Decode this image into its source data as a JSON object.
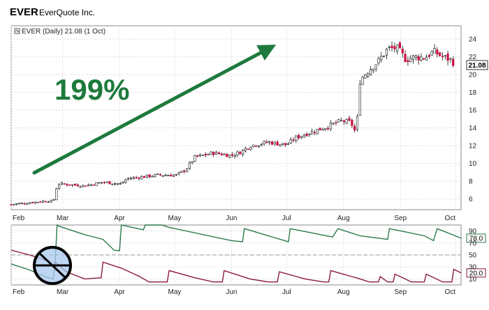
{
  "header": {
    "ticker": "EVER",
    "company": "EverQuote Inc."
  },
  "legend": {
    "text": "EVER (Daily) 21.08 (1 Oct)",
    "last_value": "21.08"
  },
  "annotation": {
    "text": "199%",
    "color": "#1d7a3c"
  },
  "colors": {
    "up_candle": "#ffffff",
    "down_candle": "#cc1040",
    "wick": "#111111",
    "arrow": "#1d7a3c",
    "osc_line_1": "#2a7a4a",
    "osc_line_2": "#8a1a3c",
    "grid": "#dddddd",
    "watermark": "#aac8ee"
  },
  "icons": {
    "watermark": "crossed-circle-icon",
    "legend": "chart-toggle-icon"
  },
  "chart_data": [
    {
      "type": "candlestick",
      "ylim": [
        4.8,
        25.5
      ],
      "y_ticks": [
        "6",
        "8",
        "10",
        "12",
        "14",
        "16",
        "18",
        "20",
        "22",
        "24"
      ],
      "x_ticks": [
        "Feb",
        "Mar",
        "Apr",
        "May",
        "Jun",
        "Jul",
        "Aug",
        "Sep",
        "Oct"
      ],
      "x_tick_values": [
        0,
        28,
        59,
        89,
        120,
        150,
        181,
        212,
        242
      ],
      "x_max": 245,
      "last_value": 21.08,
      "close_anchors": [
        [
          0,
          5.4
        ],
        [
          20,
          5.8
        ],
        [
          23,
          5.7
        ],
        [
          24,
          7.0
        ],
        [
          26,
          7.7
        ],
        [
          40,
          7.5
        ],
        [
          50,
          7.9
        ],
        [
          60,
          7.7
        ],
        [
          63,
          8.3
        ],
        [
          80,
          8.7
        ],
        [
          90,
          8.7
        ],
        [
          95,
          9.3
        ],
        [
          100,
          10.7
        ],
        [
          110,
          11.2
        ],
        [
          120,
          10.9
        ],
        [
          125,
          11.3
        ],
        [
          130,
          12.0
        ],
        [
          140,
          12.4
        ],
        [
          150,
          12.1
        ],
        [
          155,
          12.9
        ],
        [
          160,
          13.3
        ],
        [
          170,
          14.0
        ],
        [
          180,
          14.8
        ],
        [
          185,
          14.6
        ],
        [
          188,
          13.3
        ],
        [
          189,
          16.9
        ],
        [
          190,
          19.4
        ],
        [
          195,
          20.6
        ],
        [
          200,
          21.5
        ],
        [
          205,
          22.9
        ],
        [
          210,
          23.0
        ],
        [
          215,
          21.7
        ],
        [
          220,
          22.0
        ],
        [
          225,
          21.9
        ],
        [
          230,
          22.6
        ],
        [
          235,
          22.0
        ],
        [
          240,
          21.6
        ],
        [
          242,
          21.08
        ]
      ]
    },
    {
      "type": "line",
      "ylim": [
        0,
        100
      ],
      "y_ticks": [
        "10",
        "30",
        "50",
        "70",
        "90"
      ],
      "reference_lines": [
        50
      ],
      "x_ticks": [
        "Feb",
        "Mar",
        "Apr",
        "May",
        "Jun",
        "Jul",
        "Aug",
        "Sep",
        "Oct"
      ],
      "x_tick_values": [
        0,
        28,
        59,
        89,
        120,
        150,
        181,
        212,
        242
      ],
      "x_max": 245,
      "series": [
        {
          "points": [
            [
              0,
              35
            ],
            [
              10,
              25
            ],
            [
              20,
              12
            ],
            [
              23,
              10
            ],
            [
              24,
              40
            ],
            [
              25,
              100
            ],
            [
              26,
              98
            ],
            [
              40,
              84
            ],
            [
              50,
              76
            ],
            [
              56,
              58
            ],
            [
              59,
              57
            ],
            [
              60,
              100
            ],
            [
              72,
              92
            ],
            [
              73,
              100
            ],
            [
              82,
              100
            ],
            [
              86,
              96
            ],
            [
              120,
              74
            ],
            [
              126,
              72
            ],
            [
              127,
              94
            ],
            [
              140,
              82
            ],
            [
              151,
              72
            ],
            [
              152,
              94
            ],
            [
              175,
              80
            ],
            [
              178,
              94
            ],
            [
              190,
              82
            ],
            [
              205,
              76
            ],
            [
              206,
              94
            ],
            [
              225,
              82
            ],
            [
              230,
              74
            ],
            [
              232,
              94
            ],
            [
              245,
              78
            ]
          ],
          "last_value": "78.0"
        },
        {
          "points": [
            [
              0,
              58
            ],
            [
              10,
              50
            ],
            [
              20,
              40
            ],
            [
              23,
              32
            ],
            [
              24,
              38
            ],
            [
              30,
              22
            ],
            [
              40,
              10
            ],
            [
              49,
              12
            ],
            [
              50,
              38
            ],
            [
              60,
              28
            ],
            [
              70,
              14
            ],
            [
              75,
              5
            ],
            [
              85,
              5
            ],
            [
              86,
              24
            ],
            [
              100,
              12
            ],
            [
              110,
              5
            ],
            [
              115,
              5
            ],
            [
              116,
              24
            ],
            [
              130,
              10
            ],
            [
              140,
              5
            ],
            [
              145,
              5
            ],
            [
              146,
              22
            ],
            [
              160,
              10
            ],
            [
              170,
              5
            ],
            [
              173,
              5
            ],
            [
              174,
              24
            ],
            [
              190,
              10
            ],
            [
              195,
              5
            ],
            [
              200,
              5
            ],
            [
              201,
              14
            ],
            [
              205,
              5
            ],
            [
              208,
              5
            ],
            [
              209,
              18
            ],
            [
              218,
              5
            ],
            [
              225,
              5
            ],
            [
              226,
              18
            ],
            [
              235,
              5
            ],
            [
              240,
              5
            ],
            [
              241,
              26
            ],
            [
              245,
              20
            ]
          ],
          "last_value": "20.0"
        }
      ]
    }
  ]
}
